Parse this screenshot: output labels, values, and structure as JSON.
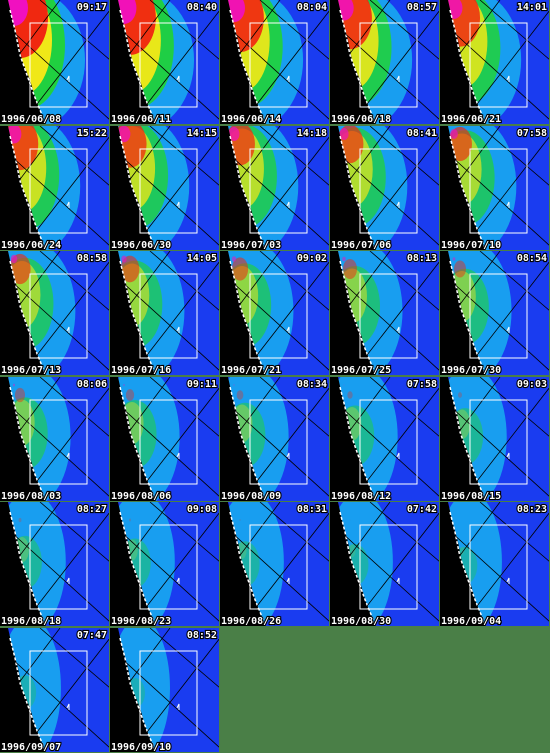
{
  "tiles": [
    {
      "time": "09:17",
      "date": "1996/06/08"
    },
    {
      "time": "08:40",
      "date": "1996/06/11"
    },
    {
      "time": "08:04",
      "date": "1996/06/14"
    },
    {
      "time": "08:57",
      "date": "1996/06/18"
    },
    {
      "time": "14:01",
      "date": "1996/06/21"
    },
    {
      "time": "15:22",
      "date": "1996/06/24"
    },
    {
      "time": "14:15",
      "date": "1996/06/30"
    },
    {
      "time": "14:18",
      "date": "1996/07/03"
    },
    {
      "time": "08:41",
      "date": "1996/07/06"
    },
    {
      "time": "07:58",
      "date": "1996/07/10"
    },
    {
      "time": "08:58",
      "date": "1996/07/13"
    },
    {
      "time": "14:05",
      "date": "1996/07/16"
    },
    {
      "time": "09:02",
      "date": "1996/07/21"
    },
    {
      "time": "08:13",
      "date": "1996/07/25"
    },
    {
      "time": "08:54",
      "date": "1996/07/30"
    },
    {
      "time": "08:06",
      "date": "1996/08/03"
    },
    {
      "time": "09:11",
      "date": "1996/08/06"
    },
    {
      "time": "08:34",
      "date": "1996/08/09"
    },
    {
      "time": "07:58",
      "date": "1996/08/12"
    },
    {
      "time": "09:03",
      "date": "1996/08/15"
    },
    {
      "time": "08:27",
      "date": "1996/08/18"
    },
    {
      "time": "09:08",
      "date": "1996/08/23"
    },
    {
      "time": "08:31",
      "date": "1996/08/26"
    },
    {
      "time": "07:42",
      "date": "1996/08/30"
    },
    {
      "time": "08:23",
      "date": "1996/09/04"
    },
    {
      "time": "07:47",
      "date": "1996/09/07"
    },
    {
      "time": "08:52",
      "date": "1996/09/10"
    }
  ]
}
